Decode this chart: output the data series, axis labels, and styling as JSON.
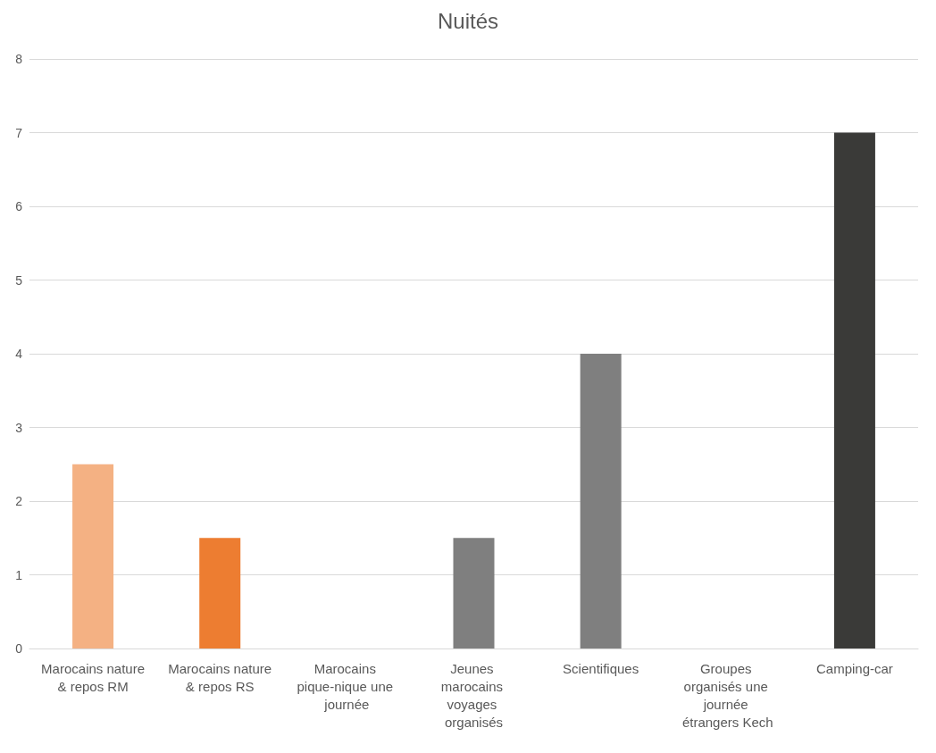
{
  "chart_data": {
    "type": "bar",
    "title": "Nuités",
    "categories": [
      "Marocains nature& repos RM",
      "Marocains nature& repos RS",
      "Marocains pique-nique une journée",
      "Jeunes marocains voyages organisés",
      "Scientifiques",
      "Groupes organisés une journée étrangers Kech",
      "Camping-car"
    ],
    "values": [
      2.5,
      1.5,
      0,
      1.5,
      4,
      0,
      7
    ],
    "colors": [
      "#f4b183",
      "#ed7d31",
      "#7f7f7f",
      "#7f7f7f",
      "#7f7f7f",
      "#3a3a38",
      "#3a3a38"
    ],
    "ylim": [
      0,
      8
    ],
    "yticks": [
      0,
      1,
      2,
      3,
      4,
      5,
      6,
      7,
      8
    ],
    "grid": "y"
  }
}
